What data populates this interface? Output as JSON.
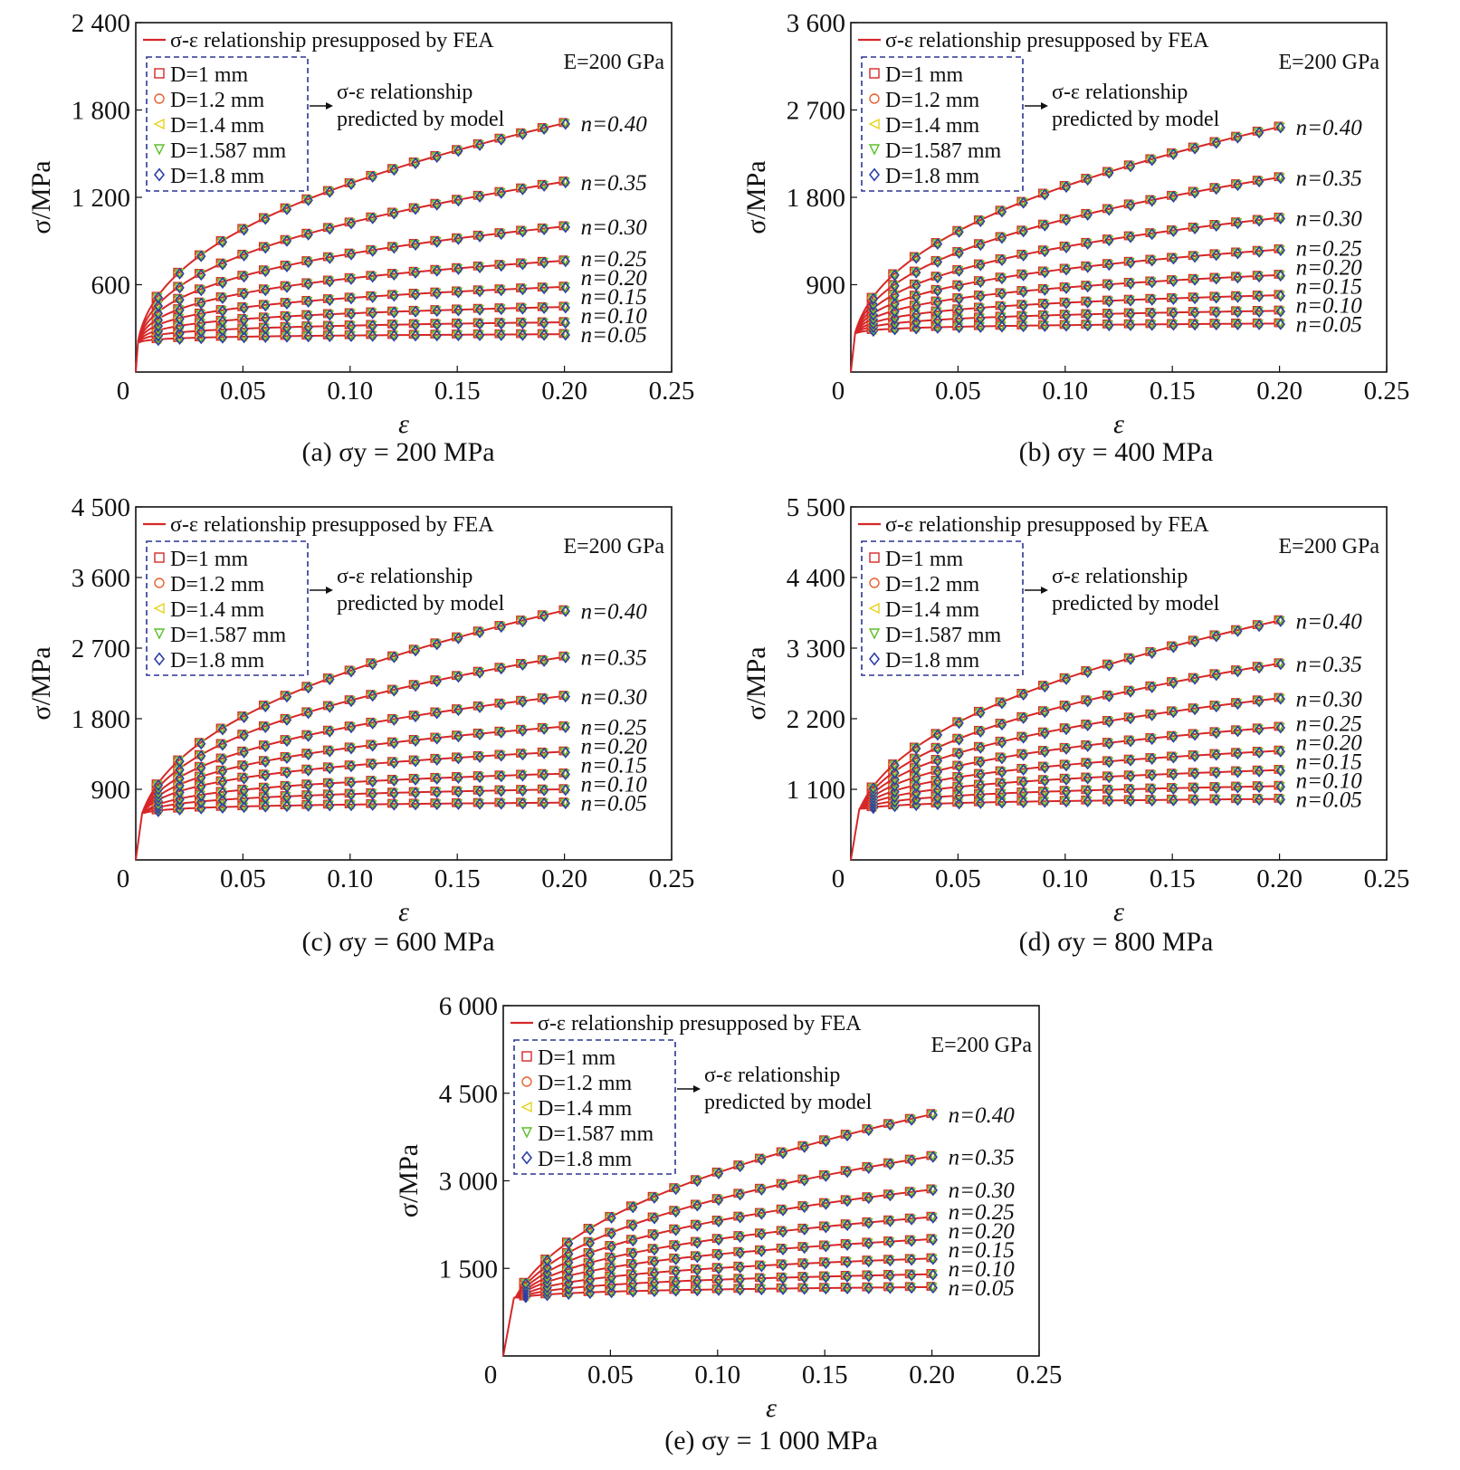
{
  "legend": {
    "fea_label": "σ-ε relationship presupposed by FEA",
    "model_label_line1": "σ-ε relationship",
    "model_label_line2": "predicted by model",
    "modulus_label": "E=200 GPa",
    "diameters": [
      {
        "label": "D=1 mm",
        "color": "#d62728",
        "marker": "square"
      },
      {
        "label": "D=1.2 mm",
        "color": "#e8602c",
        "marker": "circle"
      },
      {
        "label": "D=1.4 mm",
        "color": "#e6d21a",
        "marker": "triangle-left"
      },
      {
        "label": "D=1.587 mm",
        "color": "#5cc02a",
        "marker": "triangle-down"
      },
      {
        "label": "D=1.8 mm",
        "color": "#2b3fa8",
        "marker": "diamond"
      }
    ]
  },
  "colors": {
    "fea_line": "#d62728",
    "legend_box": "#2b3592",
    "axis": "#111111"
  },
  "chart_data": [
    {
      "type": "line",
      "caption": "(a) σy = 200 MPa",
      "xlabel": "ε",
      "ylabel": "σ/MPa",
      "xlim": [
        0,
        0.25
      ],
      "ylim": [
        0,
        2400
      ],
      "xticks": [
        0,
        0.05,
        0.1,
        0.15,
        0.2,
        0.25
      ],
      "xtick_labels": [
        "0",
        "0.05",
        "0.10",
        "0.15",
        "0.20",
        "0.25"
      ],
      "yticks": [
        0,
        600,
        1200,
        1800,
        2400
      ],
      "ytick_labels": [
        "0",
        "600",
        "1 200",
        "1 800",
        "2 400"
      ],
      "sigma_y": 200,
      "E": 200000,
      "n_values": [
        0.05,
        0.1,
        0.15,
        0.2,
        0.25,
        0.3,
        0.35,
        0.4
      ],
      "n_labels": [
        "n=0.05",
        "n=0.10",
        "n=0.15",
        "n=0.20",
        "n=0.25",
        "n=0.30",
        "n=0.35",
        "n=0.40"
      ],
      "series": [
        {
          "name": "n=0.05",
          "values": [
            260
          ]
        },
        {
          "name": "n=0.10",
          "values": [
            342
          ]
        },
        {
          "name": "n=0.15",
          "values": [
            447
          ]
        },
        {
          "name": "n=0.20",
          "values": [
            585
          ]
        },
        {
          "name": "n=0.25",
          "values": [
            765
          ]
        },
        {
          "name": "n=0.30",
          "values": [
            1000
          ]
        },
        {
          "name": "n=0.35",
          "values": [
            1307
          ]
        },
        {
          "name": "n=0.40",
          "values": [
            1709
          ]
        }
      ],
      "x_points": [
        0.01,
        0.02,
        0.03,
        0.04,
        0.05,
        0.06,
        0.07,
        0.08,
        0.09,
        0.1,
        0.11,
        0.12,
        0.13,
        0.14,
        0.15,
        0.16,
        0.17,
        0.18,
        0.19,
        0.2
      ]
    },
    {
      "type": "line",
      "caption": "(b) σy = 400 MPa",
      "xlabel": "ε",
      "ylabel": "σ/MPa",
      "xlim": [
        0,
        0.25
      ],
      "ylim": [
        0,
        3600
      ],
      "xticks": [
        0,
        0.05,
        0.1,
        0.15,
        0.2,
        0.25
      ],
      "xtick_labels": [
        "0",
        "0.05",
        "0.10",
        "0.15",
        "0.20",
        "0.25"
      ],
      "yticks": [
        0,
        900,
        1800,
        2700,
        3600
      ],
      "ytick_labels": [
        "0",
        "900",
        "1 800",
        "2 700",
        "3 600"
      ],
      "sigma_y": 400,
      "E": 200000,
      "n_values": [
        0.05,
        0.1,
        0.15,
        0.2,
        0.25,
        0.3,
        0.35,
        0.4
      ],
      "n_labels": [
        "n=0.05",
        "n=0.10",
        "n=0.15",
        "n=0.20",
        "n=0.25",
        "n=0.30",
        "n=0.35",
        "n=0.40"
      ],
      "series": [
        {
          "name": "n=0.05",
          "values": [
            500
          ]
        },
        {
          "name": "n=0.10",
          "values": [
            631
          ]
        },
        {
          "name": "n=0.15",
          "values": [
            792
          ]
        },
        {
          "name": "n=0.20",
          "values": [
            1000
          ]
        },
        {
          "name": "n=0.25",
          "values": [
            1262
          ]
        },
        {
          "name": "n=0.30",
          "values": [
            1589
          ]
        },
        {
          "name": "n=0.35",
          "values": [
            2005
          ]
        },
        {
          "name": "n=0.40",
          "values": [
            2526
          ]
        }
      ],
      "x_points": [
        0.01,
        0.02,
        0.03,
        0.04,
        0.05,
        0.06,
        0.07,
        0.08,
        0.09,
        0.1,
        0.11,
        0.12,
        0.13,
        0.14,
        0.15,
        0.16,
        0.17,
        0.18,
        0.19,
        0.2
      ]
    },
    {
      "type": "line",
      "caption": "(c) σy = 600 MPa",
      "xlabel": "ε",
      "ylabel": "σ/MPa",
      "xlim": [
        0,
        0.25
      ],
      "ylim": [
        0,
        4500
      ],
      "xticks": [
        0,
        0.05,
        0.1,
        0.15,
        0.2,
        0.25
      ],
      "xtick_labels": [
        "0",
        "0.05",
        "0.10",
        "0.15",
        "0.20",
        "0.25"
      ],
      "yticks": [
        0,
        900,
        1800,
        2700,
        3600,
        4500
      ],
      "ytick_labels": [
        "0",
        "900",
        "1 800",
        "2 700",
        "3 600",
        "4 500"
      ],
      "sigma_y": 600,
      "E": 200000,
      "n_values": [
        0.05,
        0.1,
        0.15,
        0.2,
        0.25,
        0.3,
        0.35,
        0.4
      ],
      "n_labels": [
        "n=0.05",
        "n=0.10",
        "n=0.15",
        "n=0.20",
        "n=0.25",
        "n=0.30",
        "n=0.35",
        "n=0.40"
      ],
      "series": [
        {
          "name": "n=0.05",
          "values": [
            730
          ]
        },
        {
          "name": "n=0.10",
          "values": [
            900
          ]
        },
        {
          "name": "n=0.15",
          "values": [
            1100
          ]
        },
        {
          "name": "n=0.20",
          "values": [
            1380
          ]
        },
        {
          "name": "n=0.25",
          "values": [
            1700
          ]
        },
        {
          "name": "n=0.30",
          "values": [
            2090
          ]
        },
        {
          "name": "n=0.35",
          "values": [
            2590
          ]
        },
        {
          "name": "n=0.40",
          "values": [
            3180
          ]
        }
      ],
      "x_points": [
        0.01,
        0.02,
        0.03,
        0.04,
        0.05,
        0.06,
        0.07,
        0.08,
        0.09,
        0.1,
        0.11,
        0.12,
        0.13,
        0.14,
        0.15,
        0.16,
        0.17,
        0.18,
        0.19,
        0.2
      ]
    },
    {
      "type": "line",
      "caption": "(d) σy = 800 MPa",
      "xlabel": "ε",
      "ylabel": "σ/MPa",
      "xlim": [
        0,
        0.25
      ],
      "ylim": [
        0,
        5500
      ],
      "xticks": [
        0,
        0.05,
        0.1,
        0.15,
        0.2,
        0.25
      ],
      "xtick_labels": [
        "0",
        "0.05",
        "0.10",
        "0.15",
        "0.20",
        "0.25"
      ],
      "yticks": [
        0,
        1100,
        2200,
        3300,
        4400,
        5500
      ],
      "ytick_labels": [
        "0",
        "1 100",
        "2 200",
        "3 300",
        "4 400",
        "5 500"
      ],
      "sigma_y": 800,
      "E": 200000,
      "n_values": [
        0.05,
        0.1,
        0.15,
        0.2,
        0.25,
        0.3,
        0.35,
        0.4
      ],
      "n_labels": [
        "n=0.05",
        "n=0.10",
        "n=0.15",
        "n=0.20",
        "n=0.25",
        "n=0.30",
        "n=0.35",
        "n=0.40"
      ],
      "series": [
        {
          "name": "n=0.05",
          "values": [
            950
          ]
        },
        {
          "name": "n=0.10",
          "values": [
            1150
          ]
        },
        {
          "name": "n=0.15",
          "values": [
            1400
          ]
        },
        {
          "name": "n=0.20",
          "values": [
            1700
          ]
        },
        {
          "name": "n=0.25",
          "values": [
            2070
          ]
        },
        {
          "name": "n=0.30",
          "values": [
            2520
          ]
        },
        {
          "name": "n=0.35",
          "values": [
            3060
          ]
        },
        {
          "name": "n=0.40",
          "values": [
            3730
          ]
        }
      ],
      "x_points": [
        0.01,
        0.02,
        0.03,
        0.04,
        0.05,
        0.06,
        0.07,
        0.08,
        0.09,
        0.1,
        0.11,
        0.12,
        0.13,
        0.14,
        0.15,
        0.16,
        0.17,
        0.18,
        0.19,
        0.2
      ]
    },
    {
      "type": "line",
      "caption": "(e) σy = 1 000 MPa",
      "xlabel": "ε",
      "ylabel": "σ/MPa",
      "xlim": [
        0,
        0.25
      ],
      "ylim": [
        0,
        6000
      ],
      "xticks": [
        0,
        0.05,
        0.1,
        0.15,
        0.2,
        0.25
      ],
      "xtick_labels": [
        "0",
        "0.05",
        "0.10",
        "0.15",
        "0.20",
        "0.25"
      ],
      "yticks": [
        0,
        1500,
        3000,
        4500,
        6000
      ],
      "ytick_labels": [
        "0",
        "1 500",
        "3 000",
        "4 500",
        "6 000"
      ],
      "sigma_y": 1000,
      "E": 200000,
      "n_values": [
        0.05,
        0.1,
        0.15,
        0.2,
        0.25,
        0.3,
        0.35,
        0.4
      ],
      "n_labels": [
        "n=0.05",
        "n=0.10",
        "n=0.15",
        "n=0.20",
        "n=0.25",
        "n=0.30",
        "n=0.35",
        "n=0.40"
      ],
      "series": [
        {
          "name": "n=0.05",
          "values": [
            1180
          ]
        },
        {
          "name": "n=0.10",
          "values": [
            1400
          ]
        },
        {
          "name": "n=0.15",
          "values": [
            1670
          ]
        },
        {
          "name": "n=0.20",
          "values": [
            2000
          ]
        },
        {
          "name": "n=0.25",
          "values": [
            2380
          ]
        },
        {
          "name": "n=0.30",
          "values": [
            2850
          ]
        },
        {
          "name": "n=0.35",
          "values": [
            3420
          ]
        },
        {
          "name": "n=0.40",
          "values": [
            4140
          ]
        }
      ],
      "x_points": [
        0.01,
        0.02,
        0.03,
        0.04,
        0.05,
        0.06,
        0.07,
        0.08,
        0.09,
        0.1,
        0.11,
        0.12,
        0.13,
        0.14,
        0.15,
        0.16,
        0.17,
        0.18,
        0.19,
        0.2
      ]
    }
  ]
}
